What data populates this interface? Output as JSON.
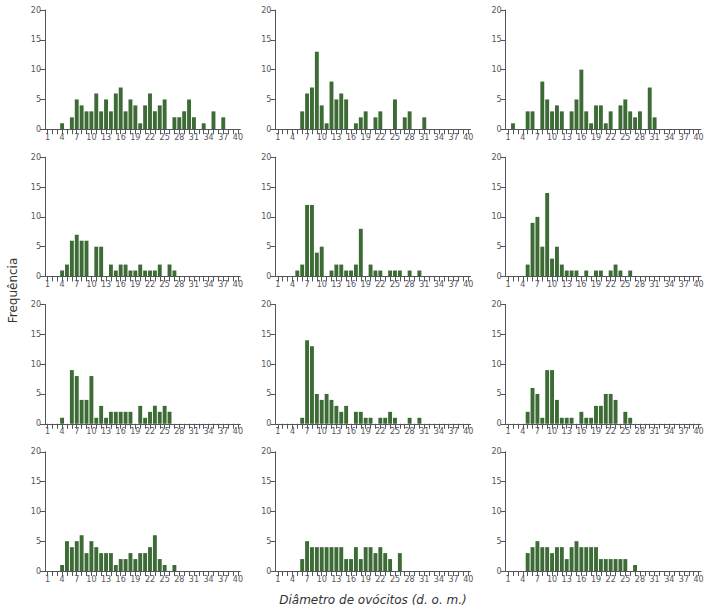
{
  "xlabel": "Diâmetro de ovócitos (d. o. m.)",
  "ylabel": "Frequência",
  "chart_data": [
    {
      "type": "bar",
      "categories": [
        "1",
        null,
        null,
        "4",
        null,
        null,
        "7",
        null,
        null,
        "10",
        null,
        null,
        "13",
        null,
        null,
        "16",
        null,
        null,
        "19",
        null,
        null,
        "22",
        null,
        null,
        "25",
        null,
        null,
        "28",
        null,
        null,
        "31",
        null,
        null,
        "34",
        null,
        null,
        "37",
        null,
        null,
        "40"
      ],
      "values": [
        0,
        0,
        0,
        1,
        0,
        2,
        5,
        4,
        3,
        3,
        6,
        3,
        5,
        3,
        6,
        7,
        3,
        5,
        4,
        1,
        4,
        6,
        3,
        4,
        5,
        0,
        2,
        2,
        3,
        5,
        2,
        0,
        1,
        0,
        3,
        0,
        2,
        0,
        0,
        0
      ],
      "color": "#3d6b35",
      "ylim": [
        0,
        20
      ],
      "yticks": [
        0,
        5,
        10,
        15,
        20
      ],
      "grid": false
    },
    {
      "type": "bar",
      "categories": [
        "1",
        null,
        null,
        "4",
        null,
        null,
        "7",
        null,
        null,
        "10",
        null,
        null,
        "13",
        null,
        null,
        "16",
        null,
        null,
        "19",
        null,
        null,
        "22",
        null,
        null,
        "25",
        null,
        null,
        "28",
        null,
        null,
        "31",
        null,
        null,
        "34",
        null,
        null,
        "37",
        null,
        null,
        "40"
      ],
      "values": [
        0,
        0,
        0,
        0,
        0,
        3,
        6,
        7,
        13,
        4,
        1,
        8,
        5,
        6,
        5,
        0,
        1,
        2,
        3,
        0,
        2,
        3,
        0,
        0,
        5,
        0,
        2,
        3,
        0,
        0,
        2,
        0,
        0,
        0,
        0,
        0,
        0,
        0,
        0,
        0
      ],
      "color": "#3d6b35",
      "ylim": [
        0,
        20
      ],
      "yticks": [
        0,
        5,
        10,
        15,
        20
      ],
      "grid": false
    },
    {
      "type": "bar",
      "categories": [
        "1",
        null,
        null,
        "4",
        null,
        null,
        "7",
        null,
        null,
        "10",
        null,
        null,
        "13",
        null,
        null,
        "16",
        null,
        null,
        "19",
        null,
        null,
        "22",
        null,
        null,
        "25",
        null,
        null,
        "28",
        null,
        null,
        "31",
        null,
        null,
        "34",
        null,
        null,
        "37",
        null,
        null,
        "40"
      ],
      "values": [
        0,
        1,
        0,
        0,
        3,
        3,
        0,
        8,
        5,
        3,
        4,
        3,
        0,
        3,
        5,
        10,
        3,
        1,
        4,
        4,
        1,
        3,
        0,
        4,
        5,
        3,
        2,
        3,
        0,
        7,
        2,
        0,
        0,
        0,
        0,
        0,
        0,
        0,
        0,
        0
      ],
      "color": "#3d6b35",
      "ylim": [
        0,
        20
      ],
      "yticks": [
        0,
        5,
        10,
        15,
        20
      ],
      "grid": false
    },
    {
      "type": "bar",
      "categories": [
        "1",
        null,
        null,
        "4",
        null,
        null,
        "7",
        null,
        null,
        "10",
        null,
        null,
        "13",
        null,
        null,
        "16",
        null,
        null,
        "19",
        null,
        null,
        "22",
        null,
        null,
        "25",
        null,
        null,
        "28",
        null,
        null,
        "31",
        null,
        null,
        "34",
        null,
        null,
        "37",
        null,
        null,
        "40"
      ],
      "values": [
        0,
        0,
        0,
        1,
        2,
        6,
        7,
        6,
        6,
        0,
        5,
        5,
        0,
        2,
        1,
        2,
        2,
        1,
        1,
        2,
        1,
        1,
        1,
        2,
        0,
        2,
        1,
        0,
        0,
        0,
        0,
        0,
        0,
        0,
        0,
        0,
        0,
        0,
        0,
        0
      ],
      "color": "#3d6b35",
      "ylim": [
        0,
        20
      ],
      "yticks": [
        0,
        5,
        10,
        15,
        20
      ],
      "grid": false
    },
    {
      "type": "bar",
      "categories": [
        "1",
        null,
        null,
        "4",
        null,
        null,
        "7",
        null,
        null,
        "10",
        null,
        null,
        "13",
        null,
        null,
        "16",
        null,
        null,
        "19",
        null,
        null,
        "22",
        null,
        null,
        "25",
        null,
        null,
        "28",
        null,
        null,
        "31",
        null,
        null,
        "34",
        null,
        null,
        "37",
        null,
        null,
        "40"
      ],
      "values": [
        0,
        0,
        0,
        0,
        1,
        2,
        12,
        12,
        4,
        5,
        0,
        1,
        2,
        2,
        1,
        1,
        2,
        8,
        0,
        2,
        1,
        1,
        0,
        1,
        1,
        1,
        0,
        1,
        0,
        1,
        0,
        0,
        0,
        0,
        0,
        0,
        0,
        0,
        0,
        0
      ],
      "color": "#3d6b35",
      "ylim": [
        0,
        20
      ],
      "yticks": [
        0,
        5,
        10,
        15,
        20
      ],
      "grid": false
    },
    {
      "type": "bar",
      "categories": [
        "1",
        null,
        null,
        "4",
        null,
        null,
        "7",
        null,
        null,
        "10",
        null,
        null,
        "13",
        null,
        null,
        "16",
        null,
        null,
        "19",
        null,
        null,
        "22",
        null,
        null,
        "25",
        null,
        null,
        "28",
        null,
        null,
        "31",
        null,
        null,
        "34",
        null,
        null,
        "37",
        null,
        null,
        "40"
      ],
      "values": [
        0,
        0,
        0,
        0,
        2,
        9,
        10,
        5,
        14,
        3,
        5,
        2,
        1,
        1,
        1,
        0,
        1,
        0,
        1,
        1,
        0,
        1,
        2,
        1,
        0,
        1,
        0,
        0,
        0,
        0,
        0,
        0,
        0,
        0,
        0,
        0,
        0,
        0,
        0,
        0
      ],
      "color": "#3d6b35",
      "ylim": [
        0,
        20
      ],
      "yticks": [
        0,
        5,
        10,
        15,
        20
      ],
      "grid": false
    },
    {
      "type": "bar",
      "categories": [
        "1",
        null,
        null,
        "4",
        null,
        null,
        "7",
        null,
        null,
        "10",
        null,
        null,
        "13",
        null,
        null,
        "16",
        null,
        null,
        "19",
        null,
        null,
        "22",
        null,
        null,
        "25",
        null,
        null,
        "28",
        null,
        null,
        "31",
        null,
        null,
        "34",
        null,
        null,
        "37",
        null,
        null,
        "40"
      ],
      "values": [
        0,
        0,
        0,
        1,
        0,
        9,
        8,
        4,
        4,
        8,
        1,
        3,
        1,
        2,
        2,
        2,
        2,
        2,
        0,
        3,
        1,
        2,
        3,
        2,
        3,
        2,
        0,
        0,
        0,
        0,
        0,
        0,
        0,
        0,
        0,
        0,
        0,
        0,
        0,
        0
      ],
      "color": "#3d6b35",
      "ylim": [
        0,
        20
      ],
      "yticks": [
        0,
        5,
        10,
        15,
        20
      ],
      "grid": false
    },
    {
      "type": "bar",
      "categories": [
        "1",
        null,
        null,
        "4",
        null,
        null,
        "7",
        null,
        null,
        "10",
        null,
        null,
        "13",
        null,
        null,
        "16",
        null,
        null,
        "19",
        null,
        null,
        "22",
        null,
        null,
        "25",
        null,
        null,
        "28",
        null,
        null,
        "31",
        null,
        null,
        "34",
        null,
        null,
        "37",
        null,
        null,
        "40"
      ],
      "values": [
        0,
        0,
        0,
        0,
        0,
        1,
        14,
        13,
        5,
        4,
        5,
        4,
        3,
        2,
        3,
        0,
        2,
        2,
        1,
        1,
        0,
        1,
        1,
        2,
        1,
        0,
        0,
        1,
        0,
        1,
        0,
        0,
        0,
        0,
        0,
        0,
        0,
        0,
        0,
        0
      ],
      "color": "#3d6b35",
      "ylim": [
        0,
        20
      ],
      "yticks": [
        0,
        5,
        10,
        15,
        20
      ],
      "grid": false
    },
    {
      "type": "bar",
      "categories": [
        "1",
        null,
        null,
        "4",
        null,
        null,
        "7",
        null,
        null,
        "10",
        null,
        null,
        "13",
        null,
        null,
        "16",
        null,
        null,
        "19",
        null,
        null,
        "22",
        null,
        null,
        "25",
        null,
        null,
        "28",
        null,
        null,
        "31",
        null,
        null,
        "34",
        null,
        null,
        "37",
        null,
        null,
        "40"
      ],
      "values": [
        0,
        0,
        0,
        0,
        2,
        6,
        5,
        1,
        9,
        9,
        4,
        1,
        1,
        1,
        0,
        2,
        1,
        1,
        3,
        3,
        5,
        5,
        4,
        0,
        2,
        1,
        0,
        0,
        0,
        0,
        0,
        0,
        0,
        0,
        0,
        0,
        0,
        0,
        0,
        0
      ],
      "color": "#3d6b35",
      "ylim": [
        0,
        20
      ],
      "yticks": [
        0,
        5,
        10,
        15,
        20
      ],
      "grid": false
    },
    {
      "type": "bar",
      "categories": [
        "1",
        null,
        null,
        "4",
        null,
        null,
        "7",
        null,
        null,
        "10",
        null,
        null,
        "13",
        null,
        null,
        "16",
        null,
        null,
        "19",
        null,
        null,
        "22",
        null,
        null,
        "25",
        null,
        null,
        "28",
        null,
        null,
        "31",
        null,
        null,
        "34",
        null,
        null,
        "37",
        null,
        null,
        "40"
      ],
      "values": [
        0,
        0,
        0,
        1,
        5,
        4,
        5,
        6,
        3,
        5,
        4,
        3,
        3,
        3,
        1,
        2,
        2,
        3,
        2,
        3,
        3,
        4,
        6,
        2,
        1,
        0,
        1,
        0,
        0,
        0,
        0,
        0,
        0,
        0,
        0,
        0,
        0,
        0,
        0,
        0
      ],
      "color": "#3d6b35",
      "ylim": [
        0,
        20
      ],
      "yticks": [
        0,
        5,
        10,
        15,
        20
      ],
      "grid": false
    },
    {
      "type": "bar",
      "categories": [
        "1",
        null,
        null,
        "4",
        null,
        null,
        "7",
        null,
        null,
        "10",
        null,
        null,
        "13",
        null,
        null,
        "16",
        null,
        null,
        "19",
        null,
        null,
        "22",
        null,
        null,
        "25",
        null,
        null,
        "28",
        null,
        null,
        "31",
        null,
        null,
        "34",
        null,
        null,
        "37",
        null,
        null,
        "40"
      ],
      "values": [
        0,
        0,
        0,
        0,
        0,
        2,
        5,
        4,
        4,
        4,
        4,
        4,
        4,
        4,
        2,
        2,
        4,
        2,
        4,
        4,
        3,
        4,
        3,
        2,
        0,
        3,
        0,
        0,
        0,
        0,
        0,
        0,
        0,
        0,
        0,
        0,
        0,
        0,
        0,
        0
      ],
      "color": "#3d6b35",
      "ylim": [
        0,
        20
      ],
      "yticks": [
        0,
        5,
        10,
        15,
        20
      ],
      "grid": false
    },
    {
      "type": "bar",
      "categories": [
        "1",
        null,
        null,
        "4",
        null,
        null,
        "7",
        null,
        null,
        "10",
        null,
        null,
        "13",
        null,
        null,
        "16",
        null,
        null,
        "19",
        null,
        null,
        "22",
        null,
        null,
        "25",
        null,
        null,
        "28",
        null,
        null,
        "31",
        null,
        null,
        "34",
        null,
        null,
        "37",
        null,
        null,
        "40"
      ],
      "values": [
        0,
        0,
        0,
        0,
        3,
        4,
        5,
        4,
        4,
        3,
        4,
        4,
        2,
        4,
        5,
        4,
        4,
        4,
        4,
        2,
        2,
        2,
        2,
        2,
        2,
        0,
        1,
        0,
        0,
        0,
        0,
        0,
        0,
        0,
        0,
        0,
        0,
        0,
        0,
        0
      ],
      "color": "#3d6b35",
      "ylim": [
        0,
        20
      ],
      "yticks": [
        0,
        5,
        10,
        15,
        20
      ],
      "grid": false
    }
  ]
}
